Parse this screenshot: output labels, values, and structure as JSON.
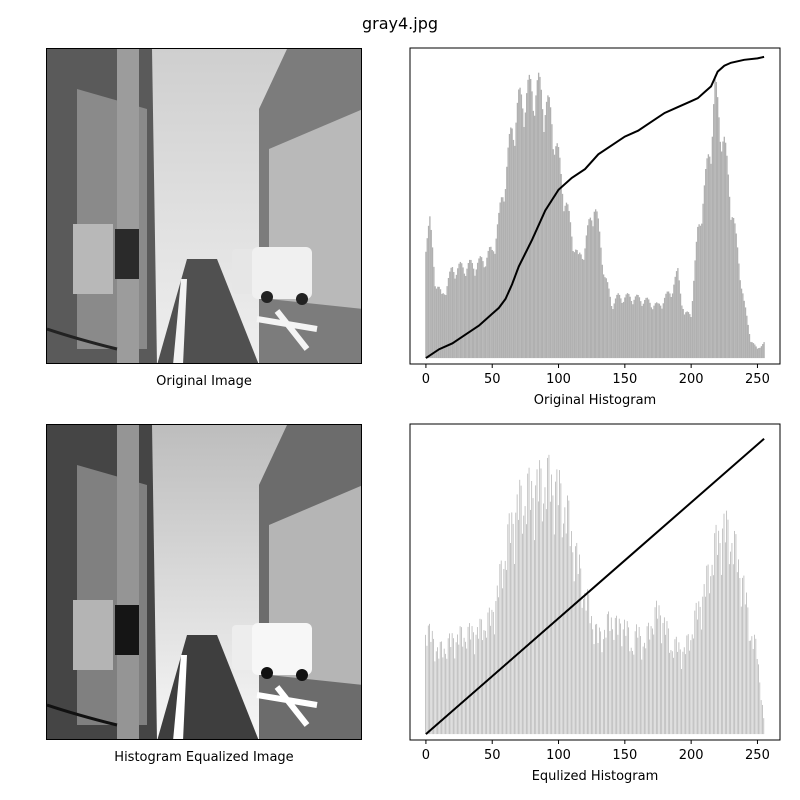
{
  "figure": {
    "title": "gray4.jpg",
    "original_image_caption": "Original Image",
    "equalized_image_caption": "Histogram Equalized Image"
  },
  "colors": {
    "histogram_bar": "#b0b0b0",
    "cdf_line": "#000000",
    "axes": "#000000"
  },
  "chart_data": [
    {
      "type": "bar",
      "title": "",
      "xlabel": "Original Histogram",
      "ylabel": "",
      "xlim": [
        -12,
        267
      ],
      "x_ticks": [
        0,
        50,
        100,
        150,
        200,
        250
      ],
      "y_ticks_visible": false,
      "histogram_profile": [
        [
          0,
          0.4
        ],
        [
          3,
          0.44
        ],
        [
          7,
          0.26
        ],
        [
          12,
          0.2
        ],
        [
          20,
          0.29
        ],
        [
          30,
          0.3
        ],
        [
          40,
          0.31
        ],
        [
          50,
          0.35
        ],
        [
          55,
          0.45
        ],
        [
          60,
          0.6
        ],
        [
          65,
          0.75
        ],
        [
          70,
          0.83
        ],
        [
          75,
          0.86
        ],
        [
          80,
          0.88
        ],
        [
          85,
          0.88
        ],
        [
          90,
          0.84
        ],
        [
          95,
          0.78
        ],
        [
          100,
          0.65
        ],
        [
          105,
          0.52
        ],
        [
          110,
          0.41
        ],
        [
          115,
          0.32
        ],
        [
          120,
          0.37
        ],
        [
          125,
          0.47
        ],
        [
          127,
          0.51
        ],
        [
          130,
          0.43
        ],
        [
          135,
          0.27
        ],
        [
          140,
          0.18
        ],
        [
          145,
          0.2
        ],
        [
          155,
          0.2
        ],
        [
          165,
          0.19
        ],
        [
          175,
          0.17
        ],
        [
          185,
          0.22
        ],
        [
          190,
          0.28
        ],
        [
          195,
          0.14
        ],
        [
          200,
          0.15
        ],
        [
          205,
          0.41
        ],
        [
          210,
          0.55
        ],
        [
          215,
          0.72
        ],
        [
          218,
          0.88
        ],
        [
          220,
          0.82
        ],
        [
          225,
          0.7
        ],
        [
          230,
          0.52
        ],
        [
          235,
          0.35
        ],
        [
          240,
          0.18
        ],
        [
          245,
          0.06
        ],
        [
          250,
          0.03
        ],
        [
          255,
          0.05
        ]
      ],
      "series": [
        {
          "type": "line",
          "x": [
            0,
            10,
            20,
            30,
            40,
            50,
            55,
            60,
            65,
            70,
            80,
            90,
            100,
            110,
            120,
            130,
            140,
            150,
            160,
            170,
            180,
            190,
            200,
            205,
            210,
            215,
            220,
            225,
            230,
            235,
            240,
            250,
            255
          ],
          "y": [
            0.0,
            0.03,
            0.05,
            0.08,
            0.11,
            0.15,
            0.17,
            0.2,
            0.25,
            0.31,
            0.4,
            0.5,
            0.57,
            0.61,
            0.64,
            0.69,
            0.72,
            0.75,
            0.77,
            0.8,
            0.83,
            0.85,
            0.87,
            0.88,
            0.9,
            0.92,
            0.97,
            0.99,
            1.0,
            1.005,
            1.01,
            1.015,
            1.02
          ]
        }
      ]
    },
    {
      "type": "bar",
      "title": "",
      "xlabel": "Equlized Histogram",
      "ylabel": "",
      "xlim": [
        -12,
        267
      ],
      "x_ticks": [
        0,
        50,
        100,
        150,
        200,
        250
      ],
      "y_ticks_visible": false,
      "histogram_profile": [
        [
          0,
          0.37
        ],
        [
          10,
          0.28
        ],
        [
          20,
          0.32
        ],
        [
          30,
          0.34
        ],
        [
          40,
          0.35
        ],
        [
          50,
          0.4
        ],
        [
          55,
          0.5
        ],
        [
          60,
          0.62
        ],
        [
          65,
          0.72
        ],
        [
          70,
          0.78
        ],
        [
          80,
          0.83
        ],
        [
          90,
          0.86
        ],
        [
          95,
          0.86
        ],
        [
          100,
          0.83
        ],
        [
          105,
          0.78
        ],
        [
          110,
          0.68
        ],
        [
          115,
          0.58
        ],
        [
          120,
          0.48
        ],
        [
          125,
          0.4
        ],
        [
          130,
          0.33
        ],
        [
          135,
          0.35
        ],
        [
          140,
          0.4
        ],
        [
          145,
          0.36
        ],
        [
          150,
          0.38
        ],
        [
          155,
          0.3
        ],
        [
          160,
          0.35
        ],
        [
          165,
          0.3
        ],
        [
          170,
          0.38
        ],
        [
          175,
          0.42
        ],
        [
          180,
          0.38
        ],
        [
          185,
          0.3
        ],
        [
          190,
          0.3
        ],
        [
          195,
          0.28
        ],
        [
          200,
          0.34
        ],
        [
          205,
          0.42
        ],
        [
          210,
          0.48
        ],
        [
          215,
          0.58
        ],
        [
          220,
          0.66
        ],
        [
          225,
          0.7
        ],
        [
          230,
          0.68
        ],
        [
          235,
          0.6
        ],
        [
          240,
          0.5
        ],
        [
          245,
          0.35
        ],
        [
          250,
          0.28
        ],
        [
          255,
          0.05
        ]
      ],
      "series": [
        {
          "type": "line",
          "x": [
            0,
            255
          ],
          "y": [
            0.0,
            1.0
          ]
        }
      ]
    }
  ]
}
